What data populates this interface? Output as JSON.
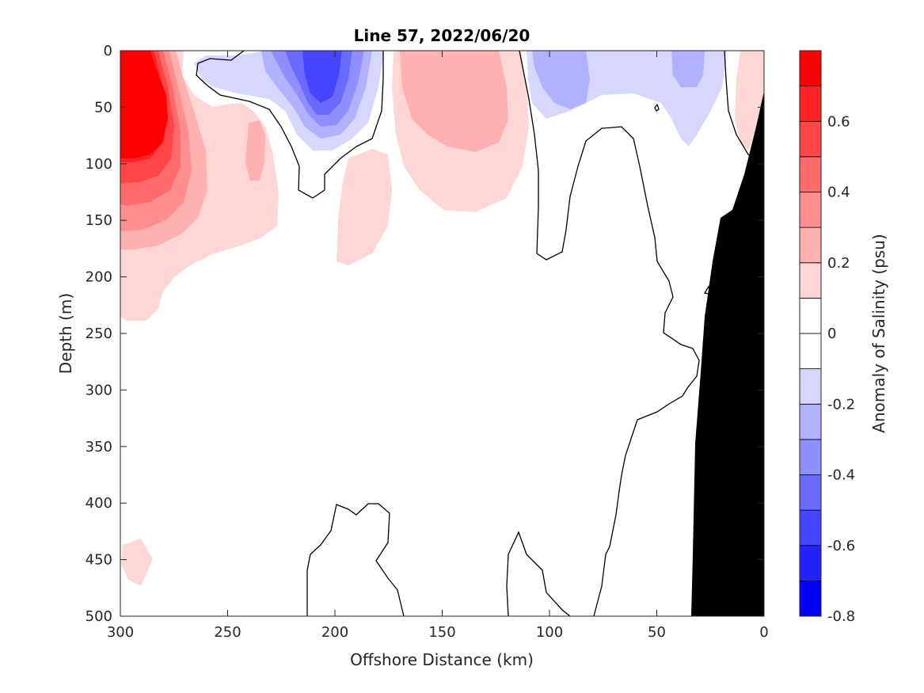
{
  "chart_data": {
    "type": "heatmap",
    "title": "Line 57, 2022/06/20",
    "xlabel": "Offshore Distance (km)",
    "ylabel": "Depth (m)",
    "colorbar_label": "Anomaly of Salinity (psu)",
    "xlim": [
      300,
      0
    ],
    "ylim": [
      0,
      500
    ],
    "x_reversed": true,
    "y_reversed": true,
    "x_ticks": [
      300,
      250,
      200,
      150,
      100,
      50,
      0
    ],
    "y_ticks": [
      0,
      50,
      100,
      150,
      200,
      250,
      300,
      350,
      400,
      450,
      500
    ],
    "colorbar": {
      "range": [
        -0.8,
        0.8
      ],
      "levels": 16,
      "ticks": [
        -0.8,
        -0.6,
        -0.4,
        -0.2,
        0,
        0.2,
        0.4,
        0.6
      ],
      "tick_labels": [
        "-0.8",
        "-0.6",
        "-0.4",
        "-0.2",
        "0",
        "0.2",
        "0.4",
        "0.6"
      ],
      "colors": [
        "#0000ff",
        "#2222ff",
        "#4545ff",
        "#6a6aff",
        "#8f8fff",
        "#b1b1ff",
        "#d6d6ff",
        "#ffffff",
        "#ffffff",
        "#ffd6d6",
        "#ffb1b1",
        "#ff8f8f",
        "#ff6a6a",
        "#ff4545",
        "#ff2222",
        "#ff0000"
      ]
    },
    "features": [
      {
        "name": "saline anomaly near-surface offshore",
        "anomaly": 0.8,
        "x_range": [
          300,
          270
        ],
        "depth_range": [
          0,
          130
        ]
      },
      {
        "name": "fresh anomaly core",
        "anomaly": -0.5,
        "x_range": [
          228,
          190
        ],
        "depth_range": [
          0,
          80
        ]
      },
      {
        "name": "saline anomaly mid-section",
        "anomaly": 0.3,
        "x_range": [
          170,
          115
        ],
        "depth_range": [
          0,
          140
        ]
      },
      {
        "name": "fresh anomaly near-shore",
        "anomaly": -0.3,
        "x_range": [
          110,
          80
        ],
        "depth_range": [
          0,
          50
        ]
      },
      {
        "name": "fresh anomaly coastal",
        "anomaly": -0.3,
        "x_range": [
          45,
          28
        ],
        "depth_range": [
          0,
          35
        ]
      },
      {
        "name": "saline anomaly deep offshore",
        "anomaly": 0.2,
        "x_range": [
          300,
          285
        ],
        "depth_range": [
          430,
          475
        ]
      }
    ],
    "bathymetry": [
      [
        0,
        40
      ],
      [
        5,
        85
      ],
      [
        20,
        140
      ],
      [
        28,
        150
      ],
      [
        32,
        195
      ],
      [
        35,
        330
      ],
      [
        40,
        500
      ]
    ],
    "colors": {
      "bathymetry": "#000000",
      "contour": "#000000"
    }
  }
}
